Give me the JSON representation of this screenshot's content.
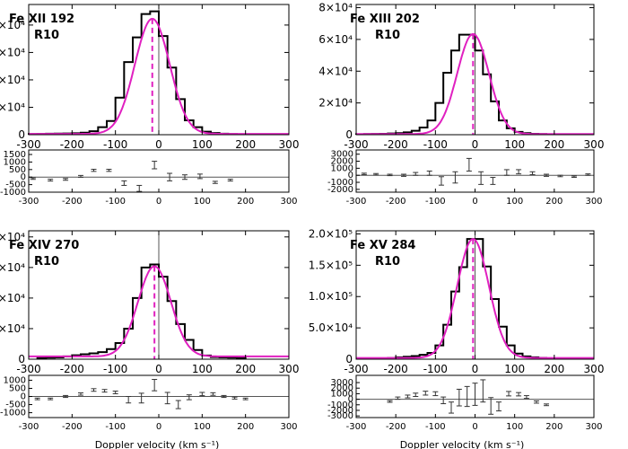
{
  "figure": {
    "xlabel": "Doppler velocity (km s⁻¹)",
    "colors": {
      "histogram": "#000000",
      "fit": "#e020c0",
      "centroid": "#e020c0",
      "axes": "#000000",
      "zero_line": "#555555"
    }
  },
  "chart_data": [
    {
      "type": "line",
      "title": "Fe XII 192",
      "subtitle": "R10",
      "xlim": [
        -300,
        300
      ],
      "xticks": [
        "-300",
        "-200",
        "-100",
        "0",
        "100",
        "200",
        "300"
      ],
      "main": {
        "ylim": [
          0,
          95000
        ],
        "yticks": [
          {
            "v": 0,
            "t": "0"
          },
          {
            "v": 20000,
            "t": "2×10⁴"
          },
          {
            "v": 40000,
            "t": "4×10⁴"
          },
          {
            "v": 60000,
            "t": "6×10⁴"
          },
          {
            "v": 80000,
            "t": "8×10⁴"
          }
        ],
        "histogram": {
          "edges": [
            -300,
            -280,
            -260,
            -240,
            -220,
            -200,
            -180,
            -160,
            -140,
            -120,
            -100,
            -80,
            -60,
            -40,
            -20,
            0,
            20,
            40,
            60,
            80,
            100,
            120,
            140,
            160,
            180
          ],
          "values": [
            500,
            600,
            700,
            800,
            900,
            1100,
            1500,
            2500,
            5500,
            10000,
            27000,
            53000,
            71000,
            88000,
            90000,
            72000,
            49000,
            26000,
            10500,
            5500,
            2200,
            1200,
            700,
            500
          ]
        },
        "fit": {
          "amplitude": 84000,
          "center": -15,
          "sigma": 40,
          "baseline": 600
        },
        "centroid": -15,
        "vline": 0
      },
      "resid": {
        "ylim": [
          -1000,
          1800
        ],
        "yticks": [
          {
            "v": -1000,
            "t": "-1000"
          },
          {
            "v": -500,
            "t": "-500"
          },
          {
            "v": 0,
            "t": "0"
          },
          {
            "v": 500,
            "t": "500"
          },
          {
            "v": 1000,
            "t": "1000"
          },
          {
            "v": 1500,
            "t": "1500"
          }
        ],
        "points": [
          {
            "x": -290,
            "y": -100,
            "e": 50
          },
          {
            "x": -250,
            "y": -200,
            "e": 60
          },
          {
            "x": -215,
            "y": -150,
            "e": 60
          },
          {
            "x": -180,
            "y": 50,
            "e": 60
          },
          {
            "x": -150,
            "y": 450,
            "e": 70
          },
          {
            "x": -115,
            "y": 450,
            "e": 70
          },
          {
            "x": -80,
            "y": -400,
            "e": 150
          },
          {
            "x": -45,
            "y": -750,
            "e": 200
          },
          {
            "x": -10,
            "y": 800,
            "e": 250
          },
          {
            "x": 25,
            "y": 0,
            "e": 250
          },
          {
            "x": 60,
            "y": 0,
            "e": 150
          },
          {
            "x": 95,
            "y": 50,
            "e": 150
          },
          {
            "x": 130,
            "y": -350,
            "e": 70
          },
          {
            "x": 165,
            "y": -200,
            "e": 60
          }
        ]
      }
    },
    {
      "type": "line",
      "title": "Fe XIII 202",
      "subtitle": "R10",
      "xlim": [
        -300,
        300
      ],
      "xticks": [
        "-300",
        "-200",
        "-100",
        "0",
        "100",
        "200",
        "300"
      ],
      "main": {
        "ylim": [
          0,
          82000
        ],
        "yticks": [
          {
            "v": 0,
            "t": "0"
          },
          {
            "v": 20000,
            "t": "2×10⁴"
          },
          {
            "v": 40000,
            "t": "4×10⁴"
          },
          {
            "v": 60000,
            "t": "6×10⁴"
          },
          {
            "v": 80000,
            "t": "8×10⁴"
          }
        ],
        "histogram": {
          "edges": [
            -300,
            -280,
            -260,
            -240,
            -220,
            -200,
            -180,
            -160,
            -140,
            -120,
            -100,
            -80,
            -60,
            -40,
            -20,
            0,
            20,
            40,
            60,
            80,
            100,
            120,
            140,
            160,
            180,
            200,
            220,
            240
          ],
          "values": [
            300,
            400,
            500,
            600,
            800,
            1000,
            1500,
            2500,
            4500,
            9000,
            20000,
            39000,
            53000,
            63000,
            63000,
            53000,
            38000,
            21000,
            9000,
            4000,
            1800,
            1000,
            600,
            400,
            300,
            300,
            300
          ]
        },
        "fit": {
          "amplitude": 63000,
          "center": -5,
          "sigma": 40,
          "baseline": 400
        },
        "centroid": -5,
        "vline": 0
      },
      "resid": {
        "ylim": [
          -2400,
          3600
        ],
        "yticks": [
          {
            "v": -2000,
            "t": "-2000"
          },
          {
            "v": -1000,
            "t": "-1000"
          },
          {
            "v": 0,
            "t": "0"
          },
          {
            "v": 1000,
            "t": "1000"
          },
          {
            "v": 2000,
            "t": "2000"
          },
          {
            "v": 3000,
            "t": "3000"
          }
        ],
        "points": [
          {
            "x": -280,
            "y": 200,
            "e": 100
          },
          {
            "x": -250,
            "y": 150,
            "e": 100
          },
          {
            "x": -215,
            "y": 50,
            "e": 100
          },
          {
            "x": -180,
            "y": 0,
            "e": 150
          },
          {
            "x": -150,
            "y": 200,
            "e": 200
          },
          {
            "x": -115,
            "y": 300,
            "e": 300
          },
          {
            "x": -85,
            "y": -800,
            "e": 600
          },
          {
            "x": -50,
            "y": -300,
            "e": 800
          },
          {
            "x": -15,
            "y": 1500,
            "e": 900
          },
          {
            "x": 15,
            "y": -400,
            "e": 900
          },
          {
            "x": 45,
            "y": -800,
            "e": 500
          },
          {
            "x": 80,
            "y": 400,
            "e": 400
          },
          {
            "x": 110,
            "y": 500,
            "e": 300
          },
          {
            "x": 145,
            "y": 300,
            "e": 200
          },
          {
            "x": 180,
            "y": 0,
            "e": 150
          },
          {
            "x": 215,
            "y": -100,
            "e": 100
          },
          {
            "x": 250,
            "y": -200,
            "e": 100
          },
          {
            "x": 285,
            "y": 100,
            "e": 100
          }
        ]
      }
    },
    {
      "type": "line",
      "title": "Fe XIV 270",
      "subtitle": "R10",
      "xlim": [
        -300,
        300
      ],
      "xticks": [
        "-300",
        "-200",
        "-100",
        "0",
        "100",
        "200",
        "300"
      ],
      "main": {
        "ylim": [
          0,
          42000
        ],
        "yticks": [
          {
            "v": 0,
            "t": "0"
          },
          {
            "v": 10000,
            "t": "1×10⁴"
          },
          {
            "v": 20000,
            "t": "2×10⁴"
          },
          {
            "v": 30000,
            "t": "3×10⁴"
          },
          {
            "v": 40000,
            "t": "4×10⁴"
          }
        ],
        "histogram": {
          "edges": [
            -280,
            -260,
            -240,
            -220,
            -200,
            -180,
            -160,
            -140,
            -120,
            -100,
            -80,
            -60,
            -40,
            -20,
            0,
            20,
            40,
            60,
            80,
            100,
            120,
            140,
            160,
            180,
            200
          ],
          "values": [
            400,
            500,
            600,
            900,
            1300,
            1600,
            1900,
            2300,
            3300,
            5300,
            10000,
            20000,
            30000,
            31000,
            27000,
            19000,
            11500,
            6300,
            3000,
            1200,
            700,
            600,
            500,
            400
          ]
        },
        "fit": {
          "amplitude": 29500,
          "center": -10,
          "sigma": 38,
          "baseline": 900
        },
        "centroid": -10,
        "vline": 0
      },
      "resid": {
        "ylim": [
          -1300,
          1300
        ],
        "yticks": [
          {
            "v": -1000,
            "t": "-1000"
          },
          {
            "v": -500,
            "t": "-500"
          },
          {
            "v": 0,
            "t": "0"
          },
          {
            "v": 500,
            "t": "500"
          },
          {
            "v": 1000,
            "t": "1000"
          }
        ],
        "points": [
          {
            "x": -280,
            "y": -150,
            "e": 50
          },
          {
            "x": -250,
            "y": -150,
            "e": 50
          },
          {
            "x": -215,
            "y": 0,
            "e": 60
          },
          {
            "x": -180,
            "y": 150,
            "e": 70
          },
          {
            "x": -150,
            "y": 400,
            "e": 80
          },
          {
            "x": -125,
            "y": 350,
            "e": 80
          },
          {
            "x": -100,
            "y": 250,
            "e": 80
          },
          {
            "x": -70,
            "y": -200,
            "e": 200
          },
          {
            "x": -40,
            "y": -100,
            "e": 300
          },
          {
            "x": -10,
            "y": 700,
            "e": 350
          },
          {
            "x": 20,
            "y": -100,
            "e": 350
          },
          {
            "x": 45,
            "y": -500,
            "e": 250
          },
          {
            "x": 70,
            "y": -50,
            "e": 150
          },
          {
            "x": 100,
            "y": 150,
            "e": 100
          },
          {
            "x": 125,
            "y": 150,
            "e": 80
          },
          {
            "x": 150,
            "y": 0,
            "e": 60
          },
          {
            "x": 175,
            "y": -100,
            "e": 60
          },
          {
            "x": 200,
            "y": -150,
            "e": 50
          }
        ]
      }
    },
    {
      "type": "line",
      "title": "Fe XV 284",
      "subtitle": "R10",
      "xlim": [
        -300,
        300
      ],
      "xticks": [
        "-300",
        "-200",
        "-100",
        "0",
        "100",
        "200",
        "300"
      ],
      "main": {
        "ylim": [
          0,
          205000
        ],
        "yticks": [
          {
            "v": 0,
            "t": "0"
          },
          {
            "v": 50000,
            "t": "5.0×10⁴"
          },
          {
            "v": 100000,
            "t": "1.0×10⁵"
          },
          {
            "v": 150000,
            "t": "1.5×10⁵"
          },
          {
            "v": 200000,
            "t": "2.0×10⁵"
          }
        ],
        "histogram": {
          "edges": [
            -240,
            -220,
            -200,
            -180,
            -160,
            -140,
            -120,
            -100,
            -80,
            -60,
            -40,
            -20,
            0,
            20,
            40,
            60,
            80,
            100,
            120,
            140,
            160,
            180,
            200
          ],
          "values": [
            1500,
            2000,
            3000,
            4000,
            5000,
            7000,
            10000,
            22000,
            55000,
            108000,
            147000,
            192000,
            192000,
            148000,
            96000,
            52000,
            22000,
            9000,
            4500,
            3000,
            2200,
            1500
          ]
        },
        "fit": {
          "amplitude": 190000,
          "center": -5,
          "sigma": 40,
          "baseline": 2000
        },
        "centroid": -5,
        "vline": 0
      },
      "resid": {
        "ylim": [
          -3300,
          4300
        ],
        "yticks": [
          {
            "v": -3000,
            "t": "-3000"
          },
          {
            "v": -2000,
            "t": "-2000"
          },
          {
            "v": -1000,
            "t": "-1000"
          },
          {
            "v": 0,
            "t": "0"
          },
          {
            "v": 1000,
            "t": "1000"
          },
          {
            "v": 2000,
            "t": "2000"
          },
          {
            "v": 3000,
            "t": "3000"
          }
        ],
        "points": [
          {
            "x": -215,
            "y": -400,
            "e": 150
          },
          {
            "x": -195,
            "y": 200,
            "e": 200
          },
          {
            "x": -170,
            "y": 500,
            "e": 250
          },
          {
            "x": -150,
            "y": 800,
            "e": 300
          },
          {
            "x": -125,
            "y": 1100,
            "e": 350
          },
          {
            "x": -100,
            "y": 1000,
            "e": 350
          },
          {
            "x": -80,
            "y": -200,
            "e": 600
          },
          {
            "x": -60,
            "y": -1500,
            "e": 1000
          },
          {
            "x": -40,
            "y": 300,
            "e": 1500
          },
          {
            "x": -20,
            "y": 500,
            "e": 1800
          },
          {
            "x": 0,
            "y": 900,
            "e": 2000
          },
          {
            "x": 20,
            "y": 1500,
            "e": 2000
          },
          {
            "x": 40,
            "y": -1200,
            "e": 1500
          },
          {
            "x": 60,
            "y": -1300,
            "e": 800
          },
          {
            "x": 85,
            "y": 1000,
            "e": 400
          },
          {
            "x": 110,
            "y": 900,
            "e": 300
          },
          {
            "x": 130,
            "y": 400,
            "e": 250
          },
          {
            "x": 155,
            "y": -500,
            "e": 200
          },
          {
            "x": 180,
            "y": -1000,
            "e": 150
          }
        ]
      }
    }
  ]
}
